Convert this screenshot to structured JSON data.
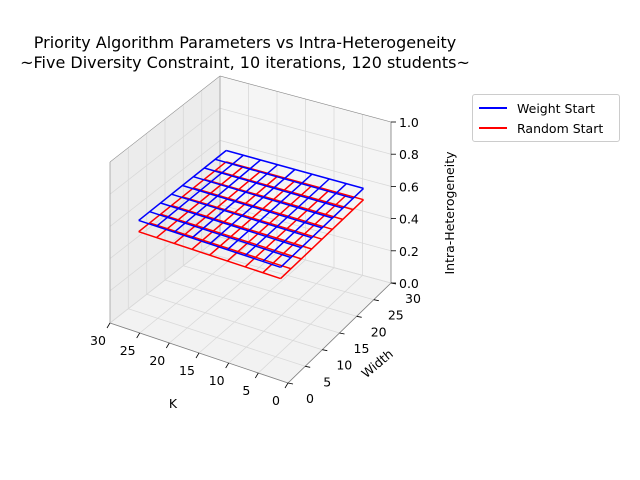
{
  "chart_data": {
    "type": "surface-wireframe-3d",
    "title_line1": "Priority Algorithm Parameters vs Intra-Heterogeneity",
    "title_line2": "~Five Diversity Constraint, 10 iterations, 120 students~",
    "xlabel": "K",
    "ylabel": "Width",
    "zlabel": "Intra-Heterogeneity",
    "x_ticks": [
      0,
      5,
      10,
      15,
      20,
      25,
      30
    ],
    "y_ticks": [
      0,
      5,
      10,
      15,
      20,
      25,
      30
    ],
    "z_ticks": [
      "0.0",
      "0.2",
      "0.4",
      "0.6",
      "0.8",
      "1.0"
    ],
    "xlim": [
      0,
      30
    ],
    "ylim": [
      0,
      30
    ],
    "zlim": [
      0,
      1
    ],
    "grid": [
      3,
      6,
      9,
      12,
      15,
      18,
      21,
      24,
      27
    ],
    "series": [
      {
        "name": "Weight Start",
        "color": "#0000ff",
        "value": 0.62
      },
      {
        "name": "Random Start",
        "color": "#ff0000",
        "value": 0.55
      }
    ],
    "legend_position": "upper-right-outside",
    "grid_on": true
  }
}
